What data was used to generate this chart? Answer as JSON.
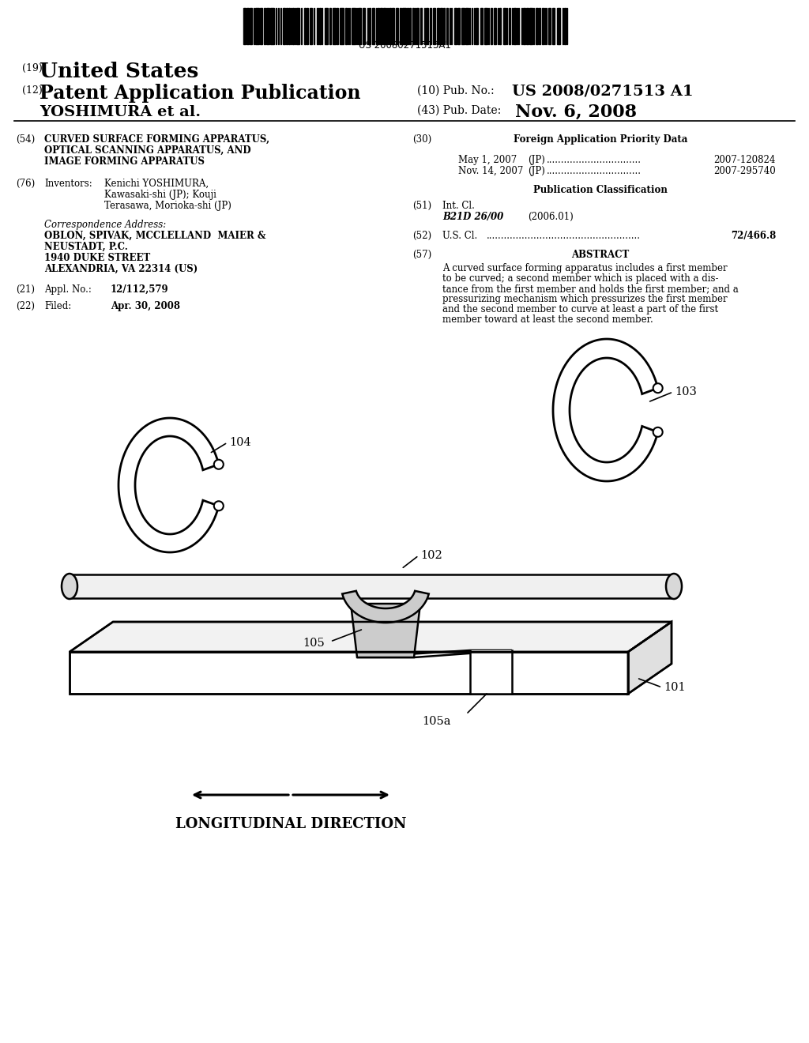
{
  "background_color": "#ffffff",
  "barcode_text": "US 20080271513A1",
  "title_19_prefix": "(19)",
  "title_19": "United States",
  "title_12_prefix": "(12)",
  "title_12": "Patent Application Publication",
  "pub_no_label": "(10) Pub. No.:",
  "pub_no_value": "US 2008/0271513 A1",
  "inventor_line": "YOSHIMURA et al.",
  "pub_date_label": "(43) Pub. Date:",
  "pub_date_value": "Nov. 6, 2008",
  "field54_label": "(54)",
  "field54_title_line1": "CURVED SURFACE FORMING APPARATUS,",
  "field54_title_line2": "OPTICAL SCANNING APPARATUS, AND",
  "field54_title_line3": "IMAGE FORMING APPARATUS",
  "field76_label": "(76)",
  "field76_key": "Inventors:",
  "field76_val_line1": "Kenichi YOSHIMURA,",
  "field76_val_line2": "Kawasaki-shi (JP); Kouji",
  "field76_val_line3": "Terasawa, Morioka-shi (JP)",
  "corr_label": "Correspondence Address:",
  "corr_line1": "OBLON, SPIVAK, MCCLELLAND  MAIER &",
  "corr_line2": "NEUSTADT, P.C.",
  "corr_line3": "1940 DUKE STREET",
  "corr_line4": "ALEXANDRIA, VA 22314 (US)",
  "field21_label": "(21)",
  "field21_key": "Appl. No.:",
  "field21_val": "12/112,579",
  "field22_label": "(22)",
  "field22_key": "Filed:",
  "field22_val": "Apr. 30, 2008",
  "field30_label": "(30)",
  "field30_title": "Foreign Application Priority Data",
  "priority_line1_date": "May 1, 2007",
  "priority_line1_country": "(JP)",
  "priority_line1_dots": "................................",
  "priority_line1_num": "2007-120824",
  "priority_line2_date": "Nov. 14, 2007",
  "priority_line2_country": "(JP)",
  "priority_line2_dots": "................................",
  "priority_line2_num": "2007-295740",
  "pub_class_title": "Publication Classification",
  "field51_label": "(51)",
  "field51_key": "Int. Cl.",
  "field51_class": "B21D 26/00",
  "field51_year": "(2006.01)",
  "field52_label": "(52)",
  "field52_key": "U.S. Cl.",
  "field52_dots": "....................................................",
  "field52_val": "72/466.8",
  "field57_label": "(57)",
  "field57_title": "ABSTRACT",
  "abstract_lines": [
    "A curved surface forming apparatus includes a first member",
    "to be curved; a second member which is placed with a dis-",
    "tance from the first member and holds the first member; and a",
    "pressurizing mechanism which pressurizes the first member",
    "and the second member to curve at least a part of the first",
    "member toward at least the second member."
  ],
  "label_101": "101",
  "label_102": "102",
  "label_103": "103",
  "label_104": "104",
  "label_105": "105",
  "label_105a": "105a",
  "longitudinal_text": "LONGITUDINAL DIRECTION"
}
